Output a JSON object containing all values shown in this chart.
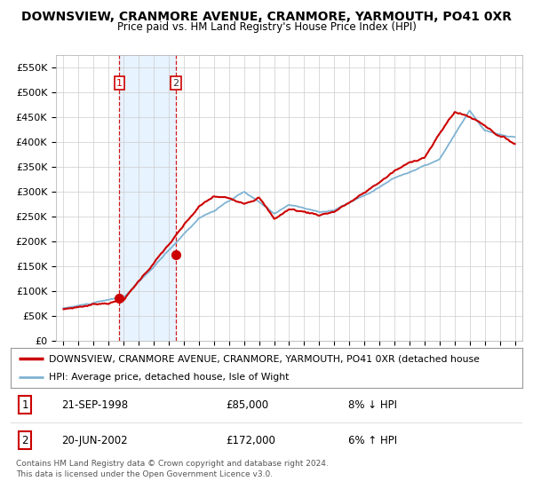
{
  "title": "DOWNSVIEW, CRANMORE AVENUE, CRANMORE, YARMOUTH, PO41 0XR",
  "subtitle": "Price paid vs. HM Land Registry's House Price Index (HPI)",
  "legend_line1": "DOWNSVIEW, CRANMORE AVENUE, CRANMORE, YARMOUTH, PO41 0XR (detached house",
  "legend_line2": "HPI: Average price, detached house, Isle of Wight",
  "footer1": "Contains HM Land Registry data © Crown copyright and database right 2024.",
  "footer2": "This data is licensed under the Open Government Licence v3.0.",
  "table_rows": [
    {
      "num": "1",
      "date": "21-SEP-1998",
      "price": "£85,000",
      "hpi": "8% ↓ HPI"
    },
    {
      "num": "2",
      "date": "20-JUN-2002",
      "price": "£172,000",
      "hpi": "6% ↑ HPI"
    }
  ],
  "point1_year": 1998.72,
  "point1_price": 85000,
  "point2_year": 2002.46,
  "point2_price": 172000,
  "red_color": "#cc0000",
  "blue_color": "#7fb3d3",
  "shade_color": "#ddeeff",
  "marker_color": "#cc0000",
  "vline_color": "#cc0000",
  "grid_color": "#cccccc",
  "background_color": "#ffffff",
  "plot_bg_color": "#ffffff",
  "ylim": [
    0,
    575000
  ],
  "yticks": [
    0,
    50000,
    100000,
    150000,
    200000,
    250000,
    300000,
    350000,
    400000,
    450000,
    500000,
    550000
  ],
  "xstart": 1994.5,
  "xend": 2025.5,
  "title_fontsize": 10,
  "subtitle_fontsize": 9
}
